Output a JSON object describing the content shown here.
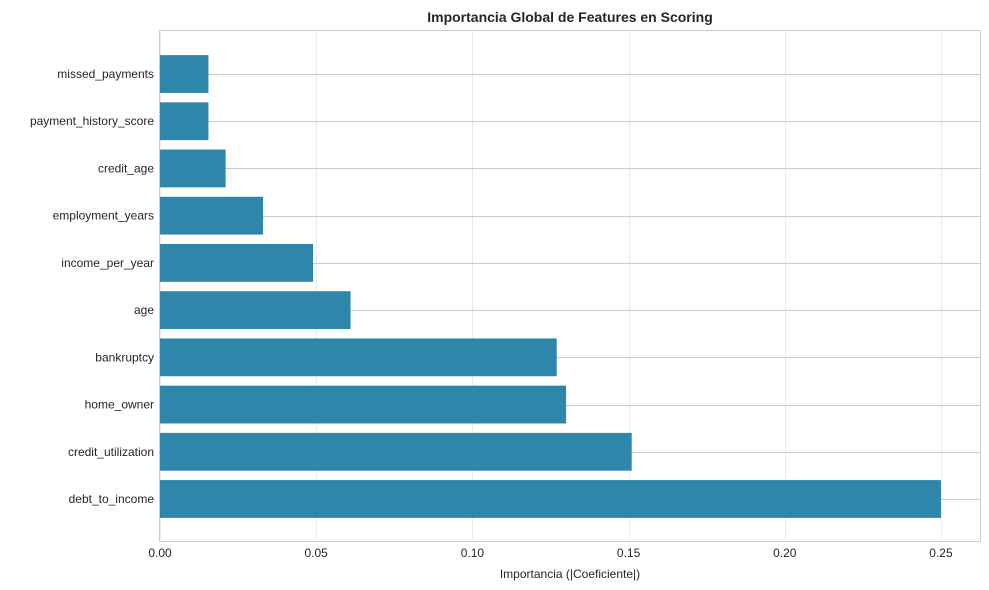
{
  "chart_data": {
    "type": "bar",
    "orientation": "horizontal",
    "title": "Importancia Global de Features en Scoring",
    "xlabel": "Importancia (|Coeficiente|)",
    "ylabel": "",
    "categories": [
      "debt_to_income",
      "credit_utilization",
      "home_owner",
      "bankruptcy",
      "age",
      "income_per_year",
      "employment_years",
      "credit_age",
      "payment_history_score",
      "missed_payments"
    ],
    "values": [
      0.25,
      0.151,
      0.13,
      0.127,
      0.061,
      0.049,
      0.033,
      0.021,
      0.0155,
      0.0155
    ],
    "xlim": [
      0,
      0.2625
    ],
    "xticks": [
      0.0,
      0.05,
      0.1,
      0.15,
      0.2,
      0.25
    ],
    "xtick_labels": [
      "0.00",
      "0.05",
      "0.10",
      "0.15",
      "0.20",
      "0.25"
    ],
    "bar_color": "#2e86ab",
    "grid": true,
    "legend": "none"
  }
}
